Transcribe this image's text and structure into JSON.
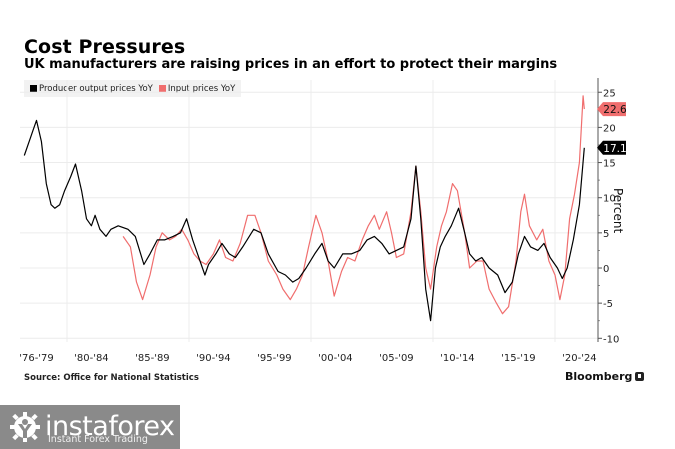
{
  "header": {
    "title": "Cost Pressures",
    "subtitle": "UK manufacturers are raising prices in an effort to protect their margins"
  },
  "legend": [
    {
      "label": "Producer output prices YoY",
      "color": "#000000"
    },
    {
      "label": "Input prices YoY",
      "color": "#f06e6e"
    }
  ],
  "footer": {
    "source": "Source: Office for National Statistics",
    "brand": "Bloomberg",
    "brand_icon": "bloomberg-terminal-icon"
  },
  "watermark": {
    "name": "instaforex",
    "tagline": "Instant Forex Trading",
    "icon": "gear-person-icon"
  },
  "chart_data": {
    "type": "line",
    "title": "Cost Pressures",
    "subtitle": "UK manufacturers are raising prices in an effort to protect their margins",
    "xlabel": "",
    "ylabel": "Percent",
    "ylim": [
      -10,
      25
    ],
    "xlim": [
      1976,
      2024
    ],
    "yticks": [
      25,
      20,
      15,
      10,
      5,
      0,
      -5,
      -10
    ],
    "xtick_labels": [
      {
        "label": "'76-'79",
        "year": 1977.5
      },
      {
        "label": "'80-'84",
        "year": 1982
      },
      {
        "label": "'85-'89",
        "year": 1987
      },
      {
        "label": "'90-'94",
        "year": 1992
      },
      {
        "label": "'95-'99",
        "year": 1997
      },
      {
        "label": "'00-'04",
        "year": 2002
      },
      {
        "label": "'05-'09",
        "year": 2007
      },
      {
        "label": "'10-'14",
        "year": 2012
      },
      {
        "label": "'15-'19",
        "year": 2017
      },
      {
        "label": "'20-'24",
        "year": 2022
      }
    ],
    "grid": true,
    "legend_position": "top-left",
    "axis_side": "right",
    "series": [
      {
        "name": "Producer output prices YoY",
        "color": "#000000",
        "last_value_label": "17.1",
        "x": [
          1976.5,
          1977.0,
          1977.2,
          1977.5,
          1977.9,
          1978.3,
          1978.7,
          1979.0,
          1979.4,
          1979.8,
          1980.3,
          1980.7,
          1981.2,
          1981.6,
          1982.0,
          1982.3,
          1982.7,
          1983.2,
          1983.6,
          1984.2,
          1985.0,
          1985.6,
          1986.3,
          1986.8,
          1987.4,
          1988.0,
          1988.7,
          1989.3,
          1989.8,
          1990.3,
          1990.8,
          1991.3,
          1991.6,
          1992.2,
          1992.7,
          1993.3,
          1993.8,
          1994.4,
          1995.3,
          1995.9,
          1996.5,
          1997.3,
          1997.9,
          1998.5,
          1999.0,
          1999.6,
          2000.3,
          2000.9,
          2001.4,
          2001.9,
          2002.6,
          2003.3,
          2004.0,
          2004.6,
          2005.2,
          2005.8,
          2006.4,
          2007.0,
          2007.6,
          2008.2,
          2008.6,
          2009.0,
          2009.4,
          2009.8,
          2010.2,
          2010.6,
          2011.0,
          2011.5,
          2012.1,
          2012.6,
          2013.0,
          2013.5,
          2014.0,
          2014.6,
          2015.3,
          2015.9,
          2016.5,
          2017.0,
          2017.5,
          2018.0,
          2018.6,
          2019.1,
          2019.6,
          2020.2,
          2020.6,
          2021.0,
          2021.5,
          2022.0,
          2022.4
        ],
        "values": [
          16,
          18.5,
          19.5,
          21,
          18,
          12,
          9,
          8.5,
          9,
          11,
          13,
          14.8,
          11,
          7,
          6,
          7.5,
          5.5,
          4.5,
          5.5,
          6,
          5.5,
          4.5,
          0.5,
          2,
          4,
          4,
          4.5,
          5,
          7,
          4,
          1.5,
          -1,
          0.5,
          2,
          3.5,
          2,
          1.5,
          3,
          5.5,
          5,
          2,
          -0.5,
          -1,
          -2,
          -1.5,
          0,
          2,
          3.5,
          1,
          0,
          2,
          2,
          2.5,
          4,
          4.5,
          3.5,
          2,
          2.5,
          3,
          7,
          14.5,
          7,
          -3,
          -7.5,
          0,
          3,
          4.5,
          6,
          8.5,
          5,
          2,
          1,
          1.5,
          0,
          -1,
          -3.5,
          -2,
          2,
          4.5,
          3,
          2.5,
          3.5,
          1.5,
          0,
          -1.5,
          0,
          4,
          9,
          17.1
        ]
      },
      {
        "name": "Input prices YoY",
        "color": "#f06e6e",
        "last_value_label": "22.6",
        "x": [
          1984.6,
          1985.2,
          1985.7,
          1986.2,
          1986.8,
          1987.3,
          1987.8,
          1988.4,
          1988.9,
          1989.4,
          1989.9,
          1990.4,
          1990.9,
          1991.4,
          1992.0,
          1992.5,
          1993.0,
          1993.6,
          1994.2,
          1994.8,
          1995.4,
          1995.9,
          1996.5,
          1997.2,
          1997.7,
          1998.3,
          1998.8,
          1999.3,
          1999.8,
          2000.4,
          2000.9,
          2001.4,
          2001.9,
          2002.5,
          2003.0,
          2003.6,
          2004.2,
          2004.7,
          2005.2,
          2005.6,
          2006.2,
          2006.6,
          2007.0,
          2007.6,
          2008.2,
          2008.6,
          2009.0,
          2009.4,
          2009.8,
          2010.3,
          2010.7,
          2011.1,
          2011.6,
          2012.0,
          2012.6,
          2013.0,
          2013.6,
          2014.1,
          2014.6,
          2015.2,
          2015.7,
          2016.2,
          2016.8,
          2017.2,
          2017.5,
          2017.9,
          2018.5,
          2019.0,
          2019.5,
          2020.0,
          2020.4,
          2020.8,
          2021.2,
          2021.6,
          2022.0,
          2022.3,
          2022.4
        ],
        "values": [
          4.5,
          3,
          -2,
          -4.5,
          -1,
          3,
          5,
          4,
          4.5,
          5.5,
          4,
          2,
          1,
          0.5,
          2,
          4,
          1.5,
          1,
          3.5,
          7.5,
          7.5,
          5,
          1,
          -1,
          -3,
          -4.5,
          -3,
          -1,
          3,
          7.5,
          5,
          1,
          -4,
          -0.5,
          1.5,
          1,
          4,
          6,
          7.5,
          5.5,
          8,
          5,
          1.5,
          2,
          8,
          14.5,
          8,
          0,
          -3,
          3,
          6,
          8,
          12,
          11,
          5,
          0,
          1,
          1,
          -3,
          -5,
          -6.5,
          -5.5,
          1,
          8,
          10.5,
          6,
          4,
          5.5,
          1,
          -1,
          -4.5,
          -1,
          7,
          10.5,
          15,
          24.5,
          22.6
        ]
      }
    ]
  }
}
